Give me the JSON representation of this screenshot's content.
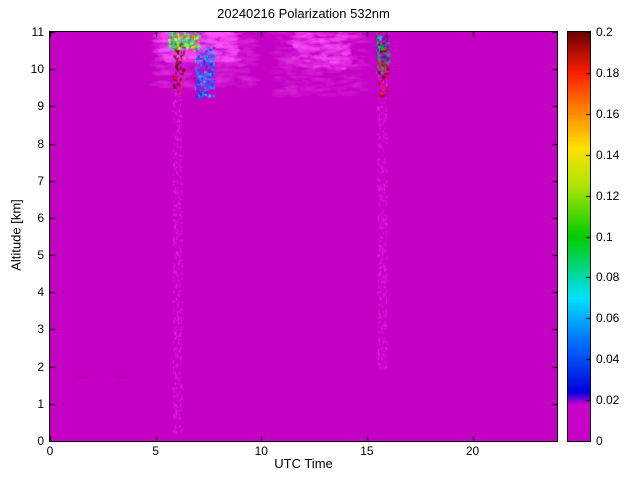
{
  "chart_data": {
    "type": "heatmap",
    "title": "20240216 Polarization 532nm",
    "xlabel": "UTC Time",
    "ylabel": "Altitude [km]",
    "xlim": [
      0,
      24
    ],
    "ylim": [
      0,
      11
    ],
    "xticks": [
      0,
      5,
      10,
      15,
      20
    ],
    "xtick_labels": [
      "0",
      "5",
      "10",
      "15",
      "20"
    ],
    "yticks": [
      0,
      1,
      2,
      3,
      4,
      5,
      6,
      7,
      8,
      9,
      10,
      11
    ],
    "ytick_labels": [
      "0",
      "1",
      "2",
      "3",
      "4",
      "5",
      "6",
      "7",
      "8",
      "9",
      "10",
      "11"
    ],
    "grid": false,
    "background_color": "#c400c4",
    "colorbar": {
      "min": 0,
      "max": 0.2,
      "ticks": [
        0,
        0.02,
        0.04,
        0.06,
        0.08,
        0.1,
        0.12,
        0.14,
        0.16,
        0.18,
        0.2
      ],
      "tick_labels": [
        "0",
        "0.02",
        "0.04",
        "0.06",
        "0.08",
        "0.1",
        "0.12",
        "0.14",
        "0.16",
        "0.18",
        "0.2"
      ],
      "colormap_stops": [
        [
          0.0,
          "#c400c4"
        ],
        [
          0.09,
          "#cc00cc"
        ],
        [
          0.12,
          "#0000e0"
        ],
        [
          0.25,
          "#0078ff"
        ],
        [
          0.35,
          "#00e0ff"
        ],
        [
          0.5,
          "#00cc00"
        ],
        [
          0.63,
          "#b4e600"
        ],
        [
          0.72,
          "#ffe000"
        ],
        [
          0.82,
          "#ff7800"
        ],
        [
          0.9,
          "#ff1e00"
        ],
        [
          1.0,
          "#6e0000"
        ]
      ]
    },
    "features": [
      {
        "kind": "cloud",
        "x0": 4.9,
        "x1": 9.7,
        "y0": 9.5,
        "y1": 11.0,
        "color": "#e036e0",
        "alpha": 0.35,
        "n": 350,
        "seed": 7
      },
      {
        "kind": "cloud",
        "x0": 10.7,
        "x1": 14.9,
        "y0": 9.3,
        "y1": 11.0,
        "color": "#e036e0",
        "alpha": 0.3,
        "n": 300,
        "seed": 11
      },
      {
        "kind": "cloud",
        "x0": 5.2,
        "x1": 8.8,
        "y0": 10.2,
        "y1": 11.0,
        "color": "#ff5aff",
        "alpha": 0.5,
        "n": 220,
        "seed": 13
      },
      {
        "kind": "cloud",
        "x0": 11.5,
        "x1": 14.2,
        "y0": 10.0,
        "y1": 11.0,
        "color": "#ff5aff",
        "alpha": 0.4,
        "n": 160,
        "seed": 17
      },
      {
        "kind": "vstreak",
        "x": 6.02,
        "w": 0.22,
        "y0": 0.25,
        "y1": 10.7,
        "color": "#ff46ff",
        "alpha": 0.5,
        "n": 900,
        "seed": 19
      },
      {
        "kind": "vstreak",
        "x": 15.72,
        "w": 0.22,
        "y0": 1.95,
        "y1": 10.5,
        "color": "#ff46ff",
        "alpha": 0.5,
        "n": 800,
        "seed": 23
      },
      {
        "kind": "specks",
        "x0": 5.55,
        "x1": 7.05,
        "y0": 10.55,
        "y1": 11.0,
        "colors": [
          "#00d800",
          "#aaff00",
          "#ffff00",
          "#00ffc8",
          "#ff3c00",
          "#00e6ff"
        ],
        "n": 260,
        "seed": 29,
        "s": 2
      },
      {
        "kind": "specks",
        "x0": 6.85,
        "x1": 7.75,
        "y0": 9.25,
        "y1": 10.6,
        "colors": [
          "#0038ff",
          "#00a0ff",
          "#00e6ff",
          "#2255ff"
        ],
        "n": 220,
        "seed": 31,
        "s": 2
      },
      {
        "kind": "specks",
        "x0": 5.82,
        "x1": 6.3,
        "y0": 9.4,
        "y1": 10.75,
        "colors": [
          "#7a0000",
          "#ff2800",
          "#400000"
        ],
        "n": 70,
        "seed": 37,
        "s": 2
      },
      {
        "kind": "specks",
        "x0": 15.42,
        "x1": 15.98,
        "y0": 9.85,
        "y1": 11.0,
        "colors": [
          "#0038ff",
          "#00e6ff",
          "#7a0000",
          "#00c800"
        ],
        "n": 130,
        "seed": 41,
        "s": 2
      },
      {
        "kind": "specks",
        "x0": 15.55,
        "x1": 15.95,
        "y0": 9.3,
        "y1": 10.2,
        "colors": [
          "#7a0000",
          "#ff2800"
        ],
        "n": 40,
        "seed": 43,
        "s": 2
      },
      {
        "kind": "hdash",
        "x0": 1.15,
        "x1": 1.8,
        "y": 1.72,
        "color": "#9a009a"
      },
      {
        "kind": "hdash",
        "x0": 3.1,
        "x1": 3.75,
        "y": 1.72,
        "color": "#9a009a"
      }
    ]
  }
}
